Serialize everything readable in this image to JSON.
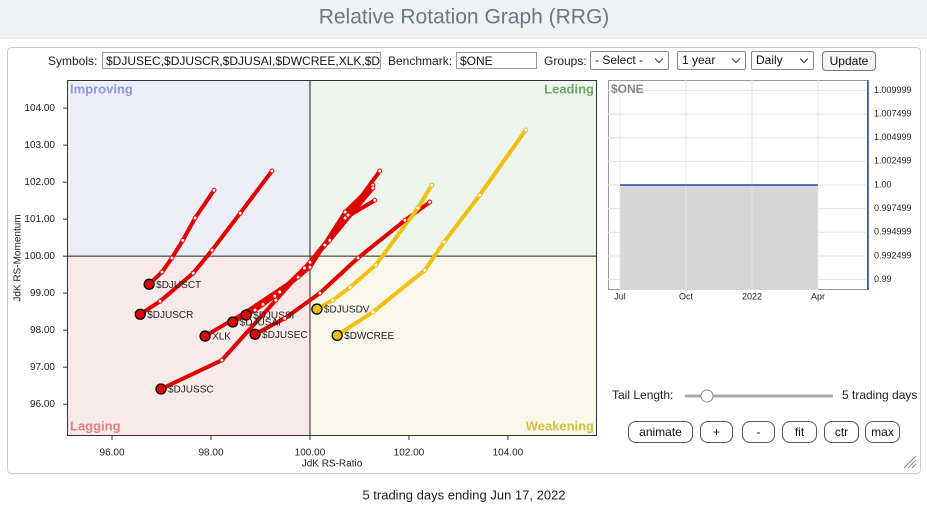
{
  "header": {
    "title": "Relative Rotation Graph (RRG)"
  },
  "controls": {
    "symbols_label": "Symbols:",
    "symbols": "$DJUSEC,$DJUSCR,$DJUSAI,$DWCREE,XLK,$D",
    "benchmark_label": "Benchmark:",
    "benchmark": "$ONE",
    "groups_label": "Groups:",
    "groups": "- Select -",
    "period": "1 year",
    "interval": "Daily",
    "update": "Update"
  },
  "tail_controls": {
    "label": "Tail Length:",
    "value_text": "5 trading days",
    "buttons": [
      "animate",
      "+",
      "-",
      "fit",
      "ctr",
      "max"
    ]
  },
  "footer": "5 trading days ending Jun 17, 2022",
  "chart_data": [
    {
      "type": "rrg",
      "xlabel": "JdK RS-Ratio",
      "ylabel": "JdK RS-Momentum",
      "quadrant_labels": [
        "Improving",
        "Leading",
        "Lagging",
        "Weakening"
      ],
      "center": [
        100,
        100
      ],
      "xlim": [
        95.09,
        105.8
      ],
      "ylim": [
        95.14,
        104.76
      ],
      "xticks": [
        {
          "value": 96,
          "label": "96.00"
        },
        {
          "value": 98,
          "label": "98.00"
        },
        {
          "value": 100,
          "label": "100.00"
        },
        {
          "value": 102,
          "label": "102.00"
        },
        {
          "value": 104,
          "label": "104.00"
        }
      ],
      "yticks": [
        {
          "value": 96,
          "label": "96.00"
        },
        {
          "value": 97,
          "label": "97.00"
        },
        {
          "value": 98,
          "label": "98.00"
        },
        {
          "value": 99,
          "label": "99.00"
        },
        {
          "value": 100,
          "label": "100.00"
        },
        {
          "value": 101,
          "label": "101.00"
        },
        {
          "value": 102,
          "label": "102.00"
        },
        {
          "value": 103,
          "label": "103.00"
        },
        {
          "value": 104,
          "label": "104.00"
        }
      ],
      "series": [
        {
          "name": "$DJUSCT",
          "color": "#e00000",
          "x": [
            98.06,
            97.68,
            97.43,
            97.21,
            97.01,
            96.75
          ],
          "values": [
            101.78,
            101.03,
            100.43,
            99.95,
            99.57,
            99.24
          ]
        },
        {
          "name": "$DJUSCR",
          "color": "#e00000",
          "x": [
            99.23,
            98.59,
            98.02,
            97.64,
            96.97,
            96.57
          ],
          "values": [
            102.3,
            101.16,
            100.16,
            99.54,
            98.78,
            98.43
          ]
        },
        {
          "name": "XLK",
          "color": "#e00000",
          "x": [
            101.41,
            100.77,
            100.3,
            99.76,
            98.73,
            97.88
          ],
          "values": [
            102.3,
            101.11,
            100.3,
            99.43,
            98.51,
            97.84
          ]
        },
        {
          "name": "$DJUSAI",
          "color": "#e00000",
          "x": [
            101.27,
            100.71,
            100.0,
            99.29,
            98.89,
            98.44
          ],
          "values": [
            101.92,
            101.19,
            99.7,
            98.92,
            98.54,
            98.22
          ]
        },
        {
          "name": "$DJUSSI",
          "color": "#e00000",
          "x": [
            101.27,
            100.4,
            99.89,
            99.39,
            99.05,
            98.71
          ],
          "values": [
            101.84,
            100.43,
            99.68,
            99.03,
            98.7,
            98.41
          ]
        },
        {
          "name": "$DJUSEC",
          "color": "#e00000",
          "x": [
            102.42,
            101.92,
            100.97,
            100.2,
            99.49,
            98.89
          ],
          "values": [
            101.46,
            100.97,
            99.95,
            99.0,
            98.32,
            97.89
          ]
        },
        {
          "name": "$DJUSSC",
          "color": "#e00000",
          "x": [
            101.31,
            100.71,
            100.0,
            99.31,
            98.22,
            96.99
          ],
          "values": [
            101.51,
            101.03,
            99.84,
            98.81,
            97.19,
            96.41
          ]
        },
        {
          "name": "$DJUSDV",
          "color": "#f0c010",
          "x": [
            102.46,
            102.18,
            101.33,
            100.81,
            100.46,
            100.14
          ],
          "values": [
            101.92,
            101.3,
            99.76,
            99.16,
            98.81,
            98.57
          ]
        },
        {
          "name": "$DWCREE",
          "color": "#f0c010",
          "x": [
            104.36,
            103.43,
            102.71,
            102.32,
            101.27,
            100.55
          ],
          "values": [
            103.41,
            101.65,
            100.38,
            99.62,
            98.49,
            97.86
          ]
        }
      ]
    },
    {
      "type": "line",
      "title": "$ONE",
      "categories": [
        "Jul",
        "Oct",
        "2022",
        "Apr"
      ],
      "values": [
        1,
        1,
        1,
        1
      ],
      "color": "#3344aa",
      "ylim": [
        0.9889,
        1.0111
      ],
      "yticks": [
        1.009999,
        1.007499,
        1.004999,
        1.002499,
        {
          "value": 1,
          "label": "1.00"
        },
        0.997499,
        0.994999,
        0.992499,
        0.99
      ]
    }
  ]
}
